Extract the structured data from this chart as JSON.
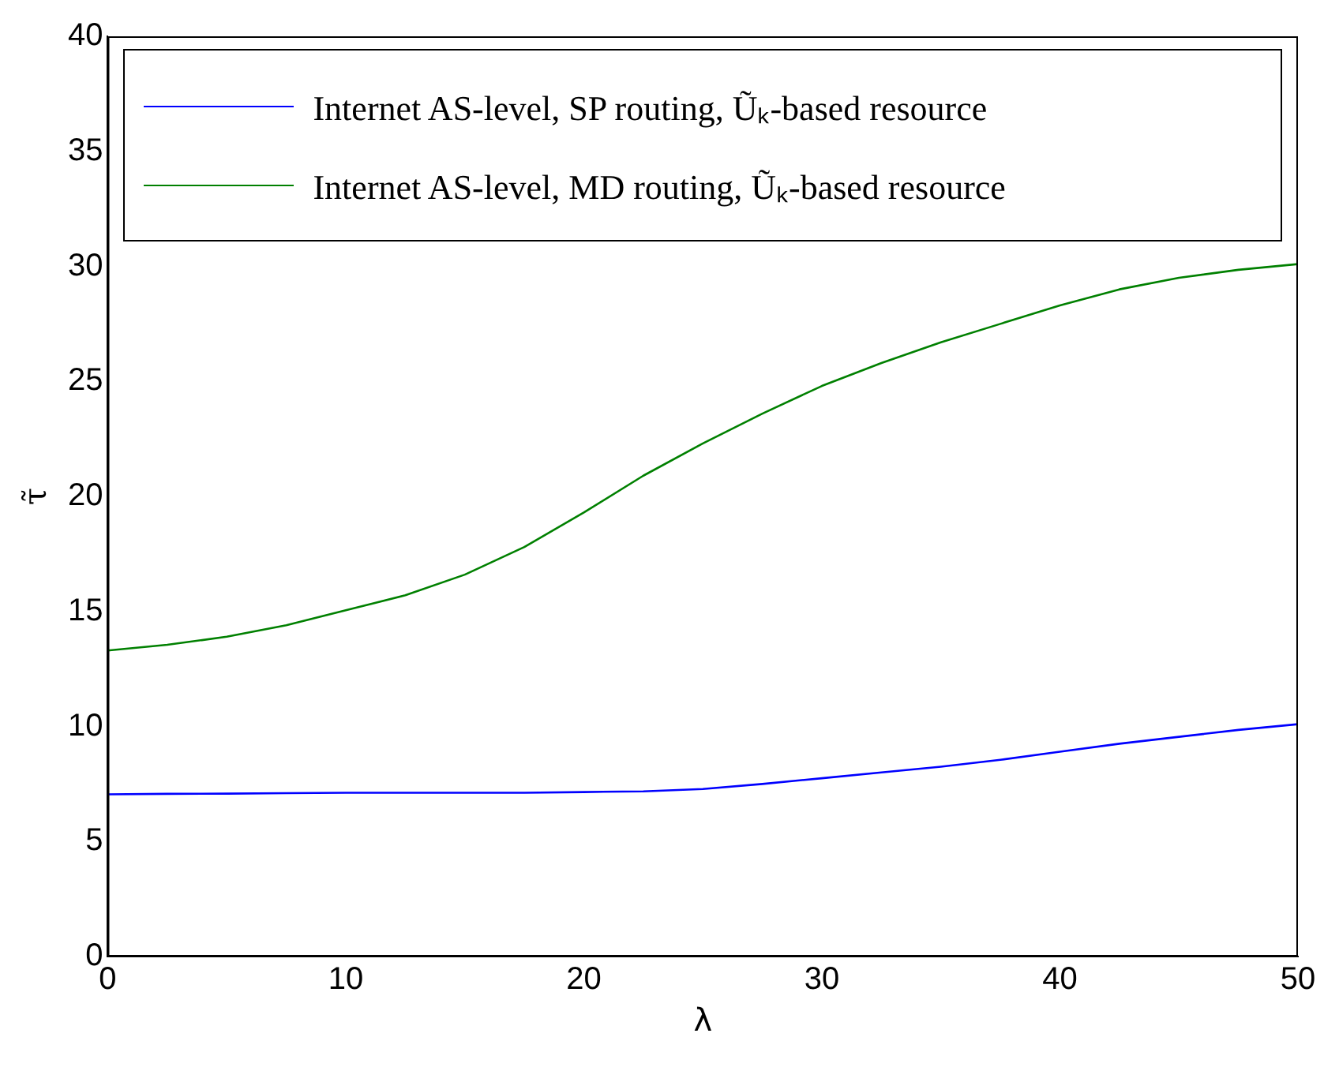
{
  "chart_data": {
    "type": "line",
    "xlabel": "λ",
    "ylabel": "τ̃",
    "x": [
      0,
      2.5,
      5,
      7.5,
      10,
      12.5,
      15,
      17.5,
      20,
      22.5,
      25,
      27.5,
      30,
      32.5,
      35,
      37.5,
      40,
      42.5,
      45,
      47.5,
      50
    ],
    "series": [
      {
        "name": "Internet AS-level, SP routing, Ũₖ-based resource",
        "color": "#0000ff",
        "values": [
          7.05,
          7.07,
          7.08,
          7.1,
          7.12,
          7.12,
          7.12,
          7.12,
          7.15,
          7.18,
          7.28,
          7.5,
          7.75,
          8.0,
          8.25,
          8.55,
          8.9,
          9.25,
          9.55,
          9.85,
          10.1
        ]
      },
      {
        "name": "Internet AS-level, MD routing, Ũₖ-based resource",
        "color": "#008000",
        "values": [
          13.3,
          13.55,
          13.9,
          14.4,
          15.05,
          15.7,
          16.6,
          17.8,
          19.3,
          20.9,
          22.3,
          23.6,
          24.8,
          25.8,
          26.7,
          27.5,
          28.3,
          29.0,
          29.5,
          29.85,
          30.1
        ]
      }
    ],
    "xlim": [
      0,
      50
    ],
    "xticks": [
      0,
      10,
      20,
      30,
      40,
      50
    ],
    "ylim": [
      0,
      40
    ],
    "yticks": [
      0,
      5,
      10,
      15,
      20,
      25,
      30,
      35,
      40
    ],
    "grid": false,
    "legend": "top",
    "marker": "none",
    "line_style": "solid"
  }
}
